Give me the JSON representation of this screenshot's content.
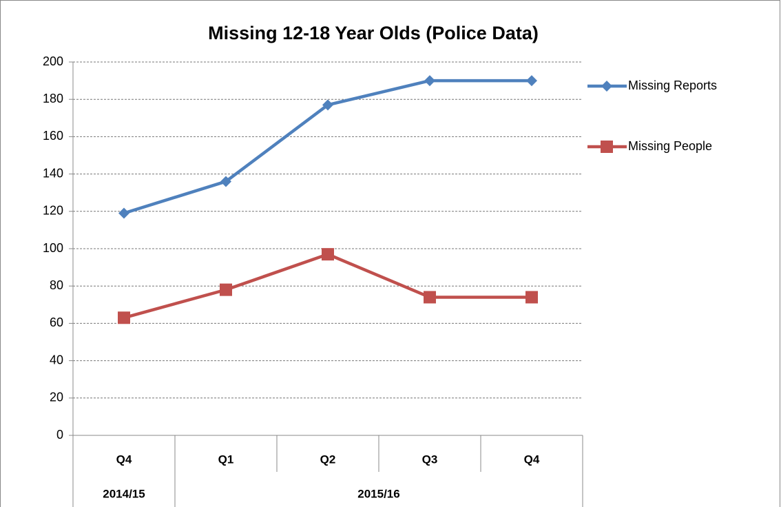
{
  "chart_data": {
    "type": "line",
    "title": "Missing 12-18 Year Olds (Police Data)",
    "categories": [
      "Q4",
      "Q1",
      "Q2",
      "Q3",
      "Q4"
    ],
    "category_groups": [
      "2014/15",
      "2015/16",
      "2015/16",
      "2015/16",
      "2015/16"
    ],
    "series": [
      {
        "name": "Missing Reports",
        "color": "#4f81bd",
        "marker": "diamond",
        "values": [
          119,
          136,
          177,
          190,
          190
        ]
      },
      {
        "name": "Missing People",
        "color": "#c0504d",
        "marker": "square",
        "values": [
          63,
          78,
          97,
          74,
          74
        ]
      }
    ],
    "ylim": [
      0,
      200
    ],
    "yticks": [
      0,
      20,
      40,
      60,
      80,
      100,
      120,
      140,
      160,
      180,
      200
    ],
    "grid": true,
    "legend": "right"
  }
}
